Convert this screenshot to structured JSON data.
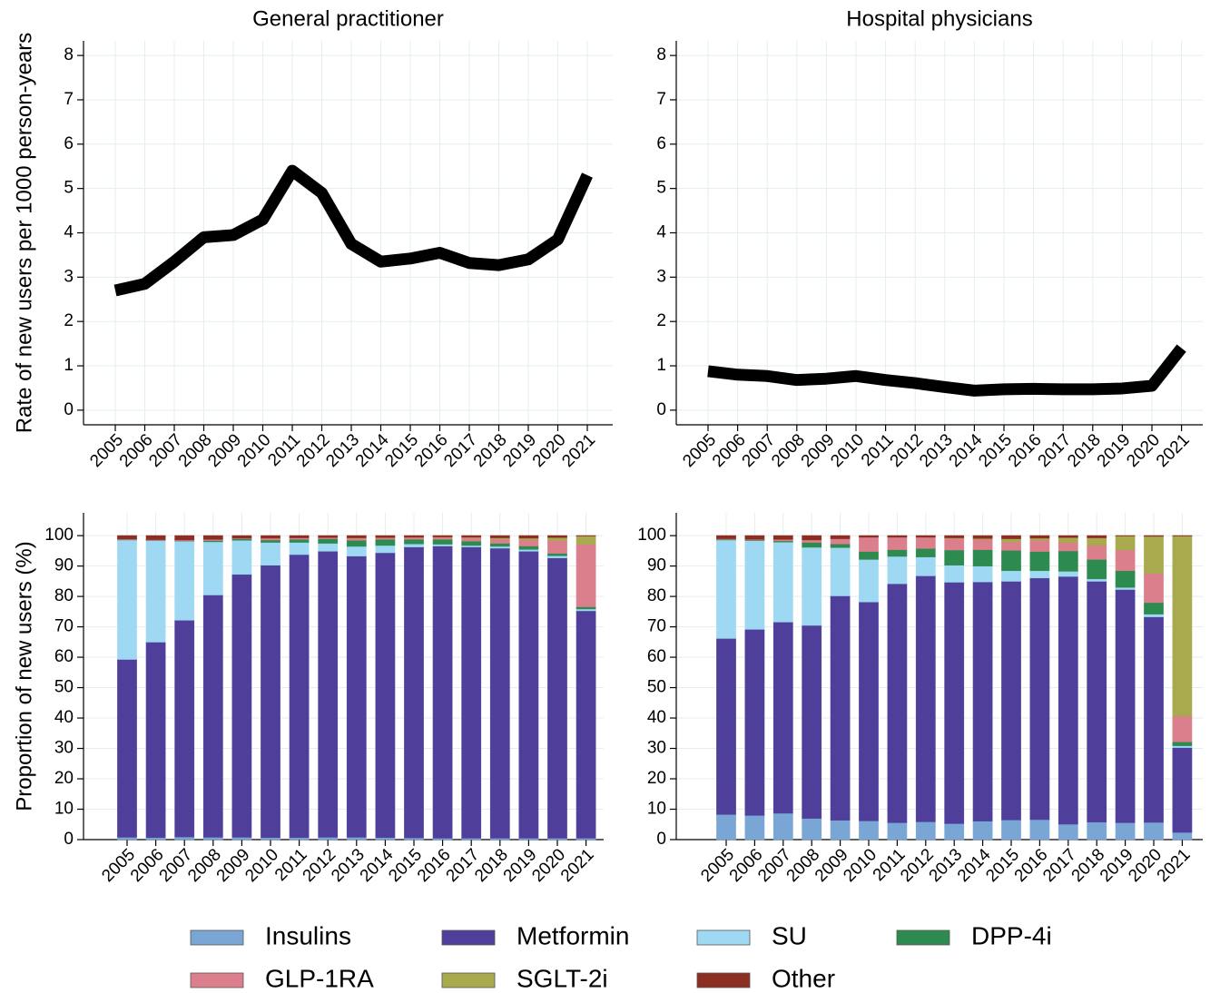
{
  "chart_data": [
    {
      "type": "line",
      "title": "General practitioner",
      "y_label": "Rate of new users per 1000 person-years",
      "categories": [
        "2005",
        "2006",
        "2007",
        "2008",
        "2009",
        "2010",
        "2011",
        "2012",
        "2013",
        "2014",
        "2015",
        "2016",
        "2017",
        "2018",
        "2019",
        "2020",
        "2021"
      ],
      "values": [
        2.7,
        2.85,
        3.35,
        3.9,
        3.95,
        4.3,
        5.4,
        4.9,
        3.75,
        3.35,
        3.42,
        3.55,
        3.32,
        3.27,
        3.4,
        3.85,
        5.3
      ],
      "color": "#000000",
      "ylim": [
        -0.33,
        8.33
      ],
      "yticks": [
        0,
        1,
        2,
        3,
        4,
        5,
        6,
        7,
        8
      ],
      "grid": true
    },
    {
      "type": "line",
      "title": "Hospital physicians",
      "categories": [
        "2005",
        "2006",
        "2007",
        "2008",
        "2009",
        "2010",
        "2011",
        "2012",
        "2013",
        "2014",
        "2015",
        "2016",
        "2017",
        "2018",
        "2019",
        "2020",
        "2021"
      ],
      "values": [
        0.88,
        0.8,
        0.77,
        0.68,
        0.71,
        0.77,
        0.68,
        0.61,
        0.52,
        0.44,
        0.47,
        0.48,
        0.47,
        0.47,
        0.49,
        0.55,
        1.4
      ],
      "color": "#000000",
      "ylim": [
        -0.33,
        8.33
      ],
      "yticks": [
        0,
        1,
        2,
        3,
        4,
        5,
        6,
        7,
        8
      ],
      "grid": true
    },
    {
      "type": "bar",
      "stacked": true,
      "y_label": "Proportion of new users (%)",
      "categories": [
        "2005",
        "2006",
        "2007",
        "2008",
        "2009",
        "2010",
        "2011",
        "2012",
        "2013",
        "2014",
        "2015",
        "2016",
        "2017",
        "2018",
        "2019",
        "2020",
        "2021"
      ],
      "series": [
        {
          "name": "Insulins",
          "color": "#7aa6d6",
          "values": [
            0.8,
            0.7,
            0.9,
            0.8,
            0.8,
            0.7,
            0.7,
            0.8,
            0.8,
            0.7,
            0.6,
            0.5,
            0.5,
            0.5,
            0.5,
            0.5,
            0.5
          ]
        },
        {
          "name": "Metformin",
          "color": "#4f3f9a",
          "values": [
            58.5,
            64.3,
            71.3,
            79.7,
            86.5,
            89.6,
            93.1,
            94.1,
            92.5,
            93.7,
            95.7,
            96.1,
            95.8,
            95.4,
            94.4,
            92.2,
            74.8
          ]
        },
        {
          "name": "SU",
          "color": "#9fd8f2",
          "values": [
            39.3,
            33.4,
            26.0,
            17.5,
            11.2,
            7.5,
            4.0,
            2.6,
            3.2,
            2.4,
            1.0,
            0.6,
            0.5,
            0.6,
            0.6,
            0.7,
            0.6
          ]
        },
        {
          "name": "DPP-4i",
          "color": "#2e8b50",
          "values": [
            0.1,
            0.1,
            0.1,
            0.4,
            0.5,
            0.8,
            1.0,
            1.5,
            2.0,
            2.0,
            1.5,
            1.6,
            1.4,
            1.0,
            1.1,
            0.8,
            0.7
          ]
        },
        {
          "name": "GLP-1RA",
          "color": "#dc7f8c",
          "values": [
            0.2,
            0.2,
            0.3,
            0.4,
            0.2,
            0.6,
            0.5,
            0.4,
            0.7,
            0.5,
            0.6,
            0.7,
            1.1,
            1.4,
            2.0,
            4.2,
            20.6
          ]
        },
        {
          "name": "SGLT-2i",
          "color": "#a9aa4e",
          "values": [
            0,
            0,
            0,
            0,
            0,
            0,
            0,
            0,
            0.1,
            0.1,
            0.1,
            0.1,
            0.2,
            0.4,
            0.6,
            1.0,
            2.7
          ]
        },
        {
          "name": "Other",
          "color": "#8b2f22",
          "values": [
            1.1,
            1.3,
            1.4,
            1.2,
            0.8,
            0.8,
            0.7,
            0.6,
            0.7,
            0.6,
            0.5,
            0.4,
            0.5,
            0.7,
            0.8,
            0.6,
            0.1
          ]
        }
      ],
      "ylim": [
        0,
        107.5
      ],
      "yticks": [
        0,
        10,
        20,
        30,
        40,
        50,
        60,
        70,
        80,
        90,
        100
      ],
      "grid": true
    },
    {
      "type": "bar",
      "stacked": true,
      "categories": [
        "2005",
        "2006",
        "2007",
        "2008",
        "2009",
        "2010",
        "2011",
        "2012",
        "2013",
        "2014",
        "2015",
        "2016",
        "2017",
        "2018",
        "2019",
        "2020",
        "2021"
      ],
      "series": [
        {
          "values": [
            8.3,
            8.0,
            8.7,
            7.0,
            6.4,
            6.2,
            5.6,
            5.9,
            5.3,
            6.1,
            6.5,
            6.6,
            5.1,
            5.8,
            5.6,
            5.7,
            2.4
          ]
        },
        {
          "values": [
            57.9,
            61.2,
            62.9,
            63.5,
            73.8,
            72.0,
            78.6,
            80.9,
            79.4,
            78.7,
            78.5,
            79.5,
            81.5,
            79.2,
            76.7,
            67.6,
            27.9
          ]
        },
        {
          "values": [
            32.4,
            29.2,
            26.3,
            25.7,
            15.9,
            14.0,
            9.0,
            6.2,
            5.6,
            5.2,
            3.5,
            2.4,
            1.7,
            0.8,
            0.7,
            0.9,
            0.6
          ]
        },
        {
          "values": [
            0.2,
            0.2,
            0.4,
            1.6,
            1.2,
            2.6,
            2.2,
            2.8,
            5.0,
            5.4,
            6.7,
            6.3,
            6.7,
            6.4,
            5.5,
            3.8,
            1.3
          ]
        },
        {
          "values": [
            0.2,
            0.2,
            0.5,
            0.8,
            1.7,
            4.7,
            4.1,
            3.7,
            3.8,
            3.4,
            2.8,
            3.7,
            2.8,
            4.6,
            6.8,
            9.6,
            8.5
          ]
        },
        {
          "values": [
            0,
            0,
            0,
            0,
            0,
            0,
            0,
            0,
            0.2,
            0.3,
            1.0,
            0.7,
            1.6,
            2.5,
            4.6,
            12.2,
            59.2
          ]
        },
        {
          "values": [
            1.0,
            1.2,
            1.2,
            1.4,
            1.0,
            0.5,
            0.5,
            0.5,
            0.7,
            0.9,
            1.0,
            0.8,
            0.6,
            0.7,
            0.1,
            0.2,
            0.1
          ]
        }
      ],
      "ylim": [
        0,
        107.5
      ],
      "yticks": [
        0,
        10,
        20,
        30,
        40,
        50,
        60,
        70,
        80,
        90,
        100
      ],
      "grid": true
    }
  ]
}
